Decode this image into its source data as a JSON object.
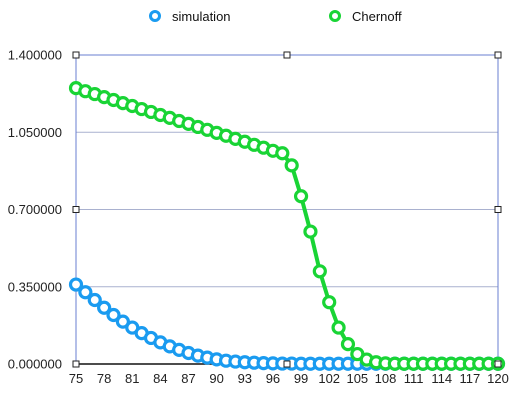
{
  "chart_data": {
    "type": "line",
    "title": "",
    "xlabel": "",
    "ylabel": "",
    "x": [
      75,
      76,
      77,
      78,
      79,
      80,
      81,
      82,
      83,
      84,
      85,
      86,
      87,
      88,
      89,
      90,
      91,
      92,
      93,
      94,
      95,
      96,
      97,
      98,
      99,
      100,
      101,
      102,
      103,
      104,
      105,
      106,
      107,
      108,
      109,
      110,
      111,
      112,
      113,
      114,
      115,
      116,
      117,
      118,
      119,
      120
    ],
    "x_tick_labels": [
      "75",
      "78",
      "81",
      "84",
      "87",
      "90",
      "93",
      "96",
      "99",
      "102",
      "105",
      "108",
      "111",
      "114",
      "117",
      "120"
    ],
    "y_tick_labels": [
      "0.000000",
      "0.350000",
      "0.700000",
      "1.050000",
      "1.400000"
    ],
    "ylim": [
      0,
      1.4
    ],
    "grid": "horizontal",
    "legend": "top",
    "series": [
      {
        "name": "simulation",
        "color": "#1a9bf0",
        "values": [
          0.36,
          0.325,
          0.29,
          0.255,
          0.222,
          0.192,
          0.165,
          0.14,
          0.118,
          0.098,
          0.08,
          0.064,
          0.05,
          0.038,
          0.029,
          0.021,
          0.015,
          0.011,
          0.008,
          0.006,
          0.004,
          0.003,
          0.002,
          0.002,
          0.001,
          0.001,
          0.001,
          0.001,
          0.001,
          0.001,
          0.001,
          0.001,
          0.001,
          0.001,
          0.001,
          0.001,
          0.001,
          0.001,
          0.001,
          0.001,
          0.001,
          0.001,
          0.001,
          0.001,
          0.001,
          0.001
        ]
      },
      {
        "name": "Chernoff",
        "color": "#19d435",
        "values": [
          1.25,
          1.236,
          1.223,
          1.209,
          1.196,
          1.182,
          1.169,
          1.155,
          1.142,
          1.128,
          1.115,
          1.101,
          1.088,
          1.074,
          1.061,
          1.047,
          1.034,
          1.02,
          1.007,
          0.993,
          0.98,
          0.966,
          0.955,
          0.9,
          0.76,
          0.6,
          0.42,
          0.28,
          0.165,
          0.09,
          0.045,
          0.02,
          0.008,
          0.003,
          0.001,
          0.001,
          0.001,
          0.001,
          0.001,
          0.001,
          0.001,
          0.001,
          0.001,
          0.001,
          0.001,
          0.001
        ]
      }
    ]
  }
}
